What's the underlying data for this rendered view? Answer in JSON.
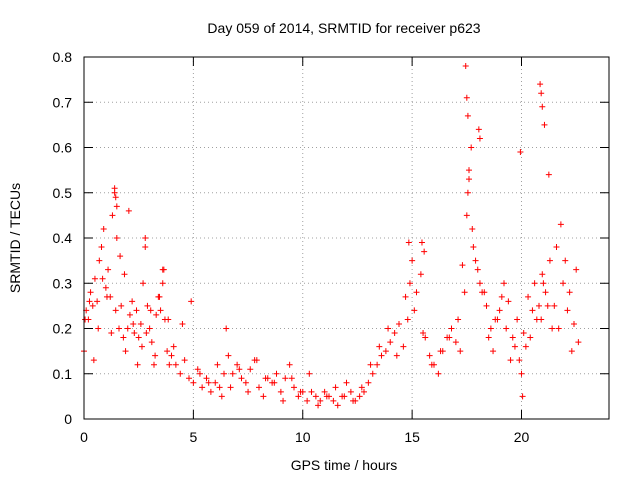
{
  "chart_data": {
    "type": "scatter",
    "title": "Day 059 of 2014, SRMTID for receiver p623",
    "xlabel": "GPS time / hours",
    "ylabel": "SRMTID / TECUs",
    "xlim": [
      0,
      24
    ],
    "ylim": [
      0,
      0.8
    ],
    "x_ticks": [
      0,
      5,
      10,
      15,
      20
    ],
    "x_tick_labels": [
      "0",
      "5",
      "10",
      "15",
      "20"
    ],
    "y_ticks": [
      0,
      0.1,
      0.2,
      0.3,
      0.4,
      0.5,
      0.6,
      0.7,
      0.8
    ],
    "y_tick_labels": [
      "0",
      "0.1",
      "0.2",
      "0.3",
      "0.4",
      "0.5",
      "0.6",
      "0.7",
      "0.8"
    ],
    "grid": true,
    "marker": "+",
    "color": "#ff0000",
    "series": [
      {
        "name": "SRMTID",
        "x": [
          0.0,
          0.1,
          0.2,
          0.3,
          0.4,
          0.5,
          0.6,
          0.7,
          0.8,
          0.9,
          1.0,
          1.1,
          1.2,
          1.3,
          1.4,
          1.5,
          1.6,
          1.7,
          1.8,
          1.9,
          2.0,
          2.1,
          2.2,
          2.3,
          2.4,
          2.5,
          2.6,
          2.7,
          2.8,
          2.9,
          3.0,
          3.1,
          3.2,
          3.3,
          3.4,
          3.5,
          3.6,
          3.7,
          3.8,
          3.9,
          4.0,
          4.2,
          4.4,
          4.6,
          4.8,
          5.0,
          5.2,
          5.4,
          5.6,
          5.8,
          6.0,
          6.2,
          6.4,
          6.5,
          6.6,
          6.8,
          7.0,
          7.2,
          7.4,
          7.6,
          7.8,
          8.0,
          8.2,
          8.4,
          8.6,
          8.8,
          9.0,
          9.2,
          9.4,
          9.6,
          9.8,
          10.0,
          10.2,
          10.4,
          10.6,
          10.8,
          11.0,
          11.2,
          11.4,
          11.6,
          11.8,
          12.0,
          12.2,
          12.4,
          12.6,
          12.8,
          13.0,
          13.2,
          13.4,
          13.6,
          13.8,
          14.0,
          14.2,
          14.4,
          14.6,
          14.8,
          14.9,
          15.0,
          15.2,
          15.4,
          15.6,
          15.8,
          16.0,
          16.2,
          16.4,
          16.6,
          16.8,
          17.0,
          17.2,
          17.4,
          17.5,
          17.6,
          17.7,
          17.8,
          18.0,
          18.2,
          18.4,
          18.6,
          18.8,
          19.0,
          19.2,
          19.4,
          19.6,
          19.8,
          19.9,
          20.0,
          20.2,
          20.4,
          20.6,
          20.8,
          20.9,
          21.0,
          21.2,
          21.4,
          21.6,
          21.8,
          22.0,
          22.2,
          22.4,
          22.6,
          0.05,
          0.25,
          0.45,
          0.65,
          0.85,
          1.05,
          1.25,
          1.45,
          1.65,
          1.85,
          2.05,
          2.25,
          2.45,
          2.65,
          2.85,
          3.05,
          3.25,
          3.45,
          3.65,
          3.85,
          4.1,
          4.5,
          4.9,
          5.3,
          5.7,
          6.1,
          6.3,
          6.7,
          7.1,
          7.5,
          7.9,
          8.3,
          8.7,
          9.1,
          9.5,
          9.9,
          10.3,
          10.7,
          11.1,
          11.5,
          11.9,
          12.3,
          12.7,
          13.1,
          13.5,
          13.9,
          14.3,
          14.7,
          15.1,
          15.5,
          15.9,
          16.3,
          16.7,
          17.1,
          17.3,
          17.55,
          17.75,
          17.9,
          18.1,
          18.3,
          18.5,
          18.7,
          18.9,
          19.1,
          19.3,
          19.5,
          19.7,
          20.1,
          20.3,
          20.5,
          20.7,
          20.95,
          21.1,
          21.3,
          21.5,
          21.7,
          21.9,
          22.1,
          22.3,
          22.5,
          1.4,
          1.45,
          1.5,
          17.45,
          17.5,
          17.55,
          17.6,
          18.05,
          18.1,
          19.95,
          20.05,
          20.85,
          20.9,
          20.95,
          21.05,
          21.25,
          14.85,
          15.45,
          15.55,
          2.8,
          3.6
        ],
        "y": [
          0.15,
          0.24,
          0.22,
          0.28,
          0.25,
          0.31,
          0.26,
          0.35,
          0.38,
          0.42,
          0.29,
          0.33,
          0.27,
          0.45,
          0.5,
          0.4,
          0.2,
          0.25,
          0.18,
          0.15,
          0.2,
          0.23,
          0.26,
          0.19,
          0.24,
          0.18,
          0.21,
          0.3,
          0.38,
          0.25,
          0.2,
          0.17,
          0.12,
          0.23,
          0.27,
          0.24,
          0.3,
          0.22,
          0.15,
          0.12,
          0.14,
          0.12,
          0.1,
          0.13,
          0.09,
          0.08,
          0.11,
          0.07,
          0.09,
          0.06,
          0.08,
          0.07,
          0.1,
          0.2,
          0.14,
          0.1,
          0.12,
          0.09,
          0.08,
          0.11,
          0.13,
          0.07,
          0.05,
          0.09,
          0.08,
          0.1,
          0.06,
          0.09,
          0.12,
          0.07,
          0.05,
          0.06,
          0.04,
          0.06,
          0.05,
          0.04,
          0.06,
          0.05,
          0.04,
          0.03,
          0.05,
          0.08,
          0.06,
          0.04,
          0.05,
          0.06,
          0.08,
          0.1,
          0.12,
          0.14,
          0.15,
          0.17,
          0.19,
          0.21,
          0.16,
          0.22,
          0.3,
          0.35,
          0.28,
          0.32,
          0.18,
          0.14,
          0.12,
          0.1,
          0.15,
          0.18,
          0.2,
          0.17,
          0.15,
          0.28,
          0.45,
          0.55,
          0.6,
          0.38,
          0.33,
          0.28,
          0.25,
          0.2,
          0.22,
          0.24,
          0.3,
          0.26,
          0.18,
          0.22,
          0.13,
          0.1,
          0.16,
          0.18,
          0.3,
          0.25,
          0.22,
          0.3,
          0.25,
          0.2,
          0.38,
          0.43,
          0.35,
          0.28,
          0.21,
          0.17,
          0.22,
          0.26,
          0.13,
          0.2,
          0.31,
          0.27,
          0.19,
          0.24,
          0.36,
          0.32,
          0.46,
          0.21,
          0.12,
          0.16,
          0.19,
          0.24,
          0.14,
          0.27,
          0.33,
          0.22,
          0.16,
          0.21,
          0.26,
          0.1,
          0.08,
          0.12,
          0.05,
          0.07,
          0.11,
          0.06,
          0.13,
          0.09,
          0.08,
          0.04,
          0.09,
          0.06,
          0.1,
          0.03,
          0.05,
          0.07,
          0.05,
          0.04,
          0.07,
          0.12,
          0.16,
          0.2,
          0.14,
          0.27,
          0.24,
          0.19,
          0.12,
          0.15,
          0.18,
          0.22,
          0.34,
          0.5,
          0.42,
          0.35,
          0.3,
          0.28,
          0.18,
          0.15,
          0.22,
          0.27,
          0.2,
          0.13,
          0.16,
          0.19,
          0.27,
          0.24,
          0.22,
          0.32,
          0.28,
          0.35,
          0.25,
          0.2,
          0.3,
          0.24,
          0.15,
          0.33,
          0.51,
          0.49,
          0.47,
          0.78,
          0.71,
          0.67,
          0.53,
          0.64,
          0.62,
          0.59,
          0.05,
          0.74,
          0.72,
          0.69,
          0.65,
          0.54,
          0.39,
          0.39,
          0.37,
          0.4,
          0.33
        ]
      }
    ]
  }
}
